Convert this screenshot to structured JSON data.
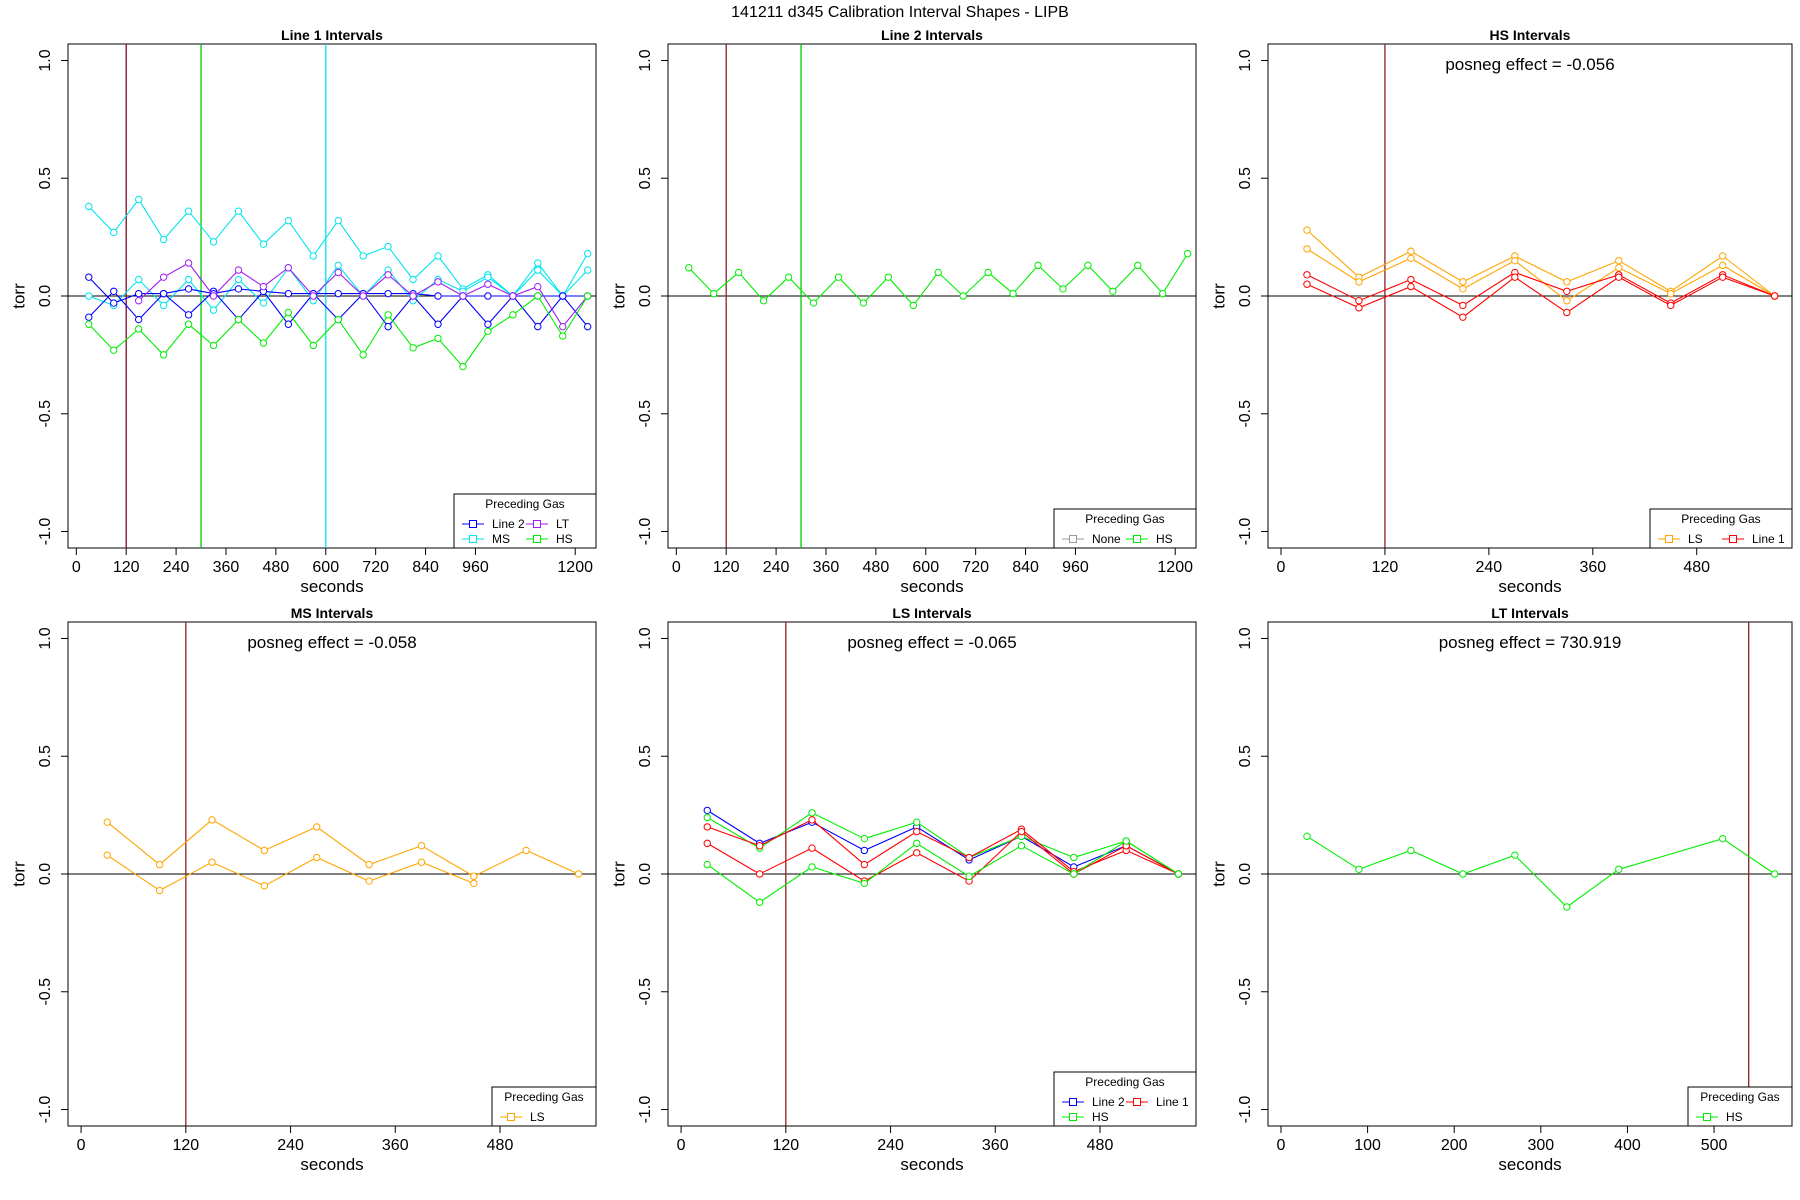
{
  "figure_title": "141211   d345   Calibration Interval Shapes - LIPB",
  "chart_data": [
    {
      "type": "line",
      "title": "Line 1 Intervals",
      "xlabel": "seconds",
      "ylabel": "torr",
      "xlim": [
        -20,
        1250
      ],
      "ylim": [
        -1.07,
        1.07
      ],
      "xticks": [
        0,
        120,
        240,
        360,
        480,
        600,
        720,
        840,
        960,
        1200
      ],
      "yticks": [
        -1.0,
        -0.5,
        0.0,
        0.5,
        1.0
      ],
      "ytick_labels": [
        "-1.0",
        "-0.5",
        "0.0",
        "0.5",
        "1.0"
      ],
      "annotation": "",
      "vlines": [
        {
          "x": 120,
          "color": "#A020F0"
        },
        {
          "x": 120,
          "color": "#8B2323"
        },
        {
          "x": 300,
          "color": "#00CC00"
        },
        {
          "x": 600,
          "color": "#00E5EE"
        }
      ],
      "legend": {
        "title": "Preceding Gas",
        "position": "bottom-right",
        "columns": 2,
        "entries": [
          {
            "label": "Line 2",
            "color": "#0000FF"
          },
          {
            "label": "LT",
            "color": "#A020F0"
          },
          {
            "label": "MS",
            "color": "#00E5EE"
          },
          {
            "label": "HS",
            "color": "#00EE00"
          }
        ]
      },
      "series": [
        {
          "color": "#00E5EE",
          "x": [
            30,
            90,
            150,
            210,
            270,
            330,
            390,
            450,
            510,
            570,
            630,
            690,
            750,
            810,
            870,
            930,
            990,
            1050,
            1110,
            1170,
            1230
          ],
          "y": [
            0.38,
            0.27,
            0.41,
            0.24,
            0.36,
            0.23,
            0.36,
            0.22,
            0.32,
            0.17,
            0.32,
            0.17,
            0.21,
            0.07,
            0.17,
            0.03,
            0.09,
            0.0,
            0.14,
            0.0,
            0.18
          ]
        },
        {
          "color": "#00E5EE",
          "x": [
            30,
            90,
            150,
            210,
            270,
            330,
            390,
            450,
            510,
            570,
            630,
            690,
            750,
            810,
            870,
            930,
            990,
            1050,
            1110,
            1170,
            1230
          ],
          "y": [
            0.0,
            -0.04,
            0.07,
            -0.04,
            0.07,
            -0.06,
            0.07,
            -0.03,
            0.12,
            -0.02,
            0.13,
            0.0,
            0.11,
            -0.02,
            0.07,
            0.02,
            0.08,
            0.0,
            0.11,
            0.0,
            0.11
          ]
        },
        {
          "color": "#0000FF",
          "x": [
            30,
            90,
            150,
            210,
            270,
            330,
            390,
            450,
            510,
            570,
            630,
            690,
            750,
            810,
            870,
            930,
            990,
            1050,
            1110,
            1170,
            1230
          ],
          "y": [
            -0.09,
            0.02,
            -0.1,
            0.01,
            -0.08,
            0.02,
            -0.1,
            0.02,
            -0.12,
            0.01,
            -0.1,
            0.01,
            -0.13,
            0.0,
            -0.12,
            0.0,
            -0.12,
            0.0,
            -0.13,
            0.0,
            -0.13
          ]
        },
        {
          "color": "#0000FF",
          "x": [
            30,
            90,
            150,
            210,
            270,
            330,
            390,
            450,
            510,
            570,
            630,
            690,
            750,
            810,
            870,
            930,
            990,
            1050,
            1110,
            1170,
            1230
          ],
          "y": [
            0.08,
            -0.03,
            0.01,
            0.01,
            0.03,
            0.01,
            0.03,
            0.02,
            0.01,
            0.01,
            0.01,
            0.01,
            0.01,
            0.01,
            0.0,
            0.0,
            0.0,
            0.0,
            0.0,
            0.0,
            0.0
          ]
        },
        {
          "color": "#A020F0",
          "x": [
            150,
            210,
            270,
            330,
            390,
            450,
            510,
            570,
            630,
            690,
            750,
            810,
            870,
            930,
            990,
            1050,
            1110,
            1170,
            1230
          ],
          "y": [
            -0.02,
            0.08,
            0.14,
            0.0,
            0.11,
            0.04,
            0.12,
            0.0,
            0.1,
            0.0,
            0.09,
            0.0,
            0.06,
            0.0,
            0.05,
            0.0,
            0.04,
            -0.13,
            0.0
          ]
        },
        {
          "color": "#00EE00",
          "x": [
            30,
            90,
            150,
            210,
            270,
            330,
            390,
            450,
            510,
            570,
            630,
            690,
            750,
            810,
            870,
            930,
            990,
            1050,
            1110,
            1170,
            1230
          ],
          "y": [
            -0.12,
            -0.23,
            -0.14,
            -0.25,
            -0.12,
            -0.21,
            -0.1,
            -0.2,
            -0.07,
            -0.21,
            -0.1,
            -0.25,
            -0.08,
            -0.22,
            -0.18,
            -0.3,
            -0.15,
            -0.08,
            0.0,
            -0.17,
            0.0
          ]
        }
      ]
    },
    {
      "type": "line",
      "title": "Line 2 Intervals",
      "xlabel": "seconds",
      "ylabel": "torr",
      "xlim": [
        -20,
        1250
      ],
      "ylim": [
        -1.07,
        1.07
      ],
      "xticks": [
        0,
        120,
        240,
        360,
        480,
        600,
        720,
        840,
        960,
        1200
      ],
      "yticks": [
        -1.0,
        -0.5,
        0.0,
        0.5,
        1.0
      ],
      "ytick_labels": [
        "-1.0",
        "-0.5",
        "0.0",
        "0.5",
        "1.0"
      ],
      "annotation": "",
      "vlines": [
        {
          "x": 120,
          "color": "#8B2323"
        },
        {
          "x": 300,
          "color": "#00CC00"
        }
      ],
      "legend": {
        "title": "Preceding Gas",
        "position": "bottom-right",
        "columns": 2,
        "entries": [
          {
            "label": "None",
            "color": "#999999"
          },
          {
            "label": "HS",
            "color": "#00EE00"
          }
        ]
      },
      "series": [
        {
          "color": "#00EE00",
          "x": [
            30,
            90,
            150,
            210,
            270,
            330,
            390,
            450,
            510,
            570,
            630,
            690,
            750,
            810,
            870,
            930,
            990,
            1050,
            1110,
            1170,
            1230
          ],
          "y": [
            0.12,
            0.01,
            0.1,
            -0.02,
            0.08,
            -0.03,
            0.08,
            -0.03,
            0.08,
            -0.04,
            0.1,
            0.0,
            0.1,
            0.01,
            0.13,
            0.03,
            0.13,
            0.02,
            0.13,
            0.01,
            0.18
          ]
        }
      ]
    },
    {
      "type": "line",
      "title": "HS Intervals",
      "xlabel": "seconds",
      "ylabel": "torr",
      "xlim": [
        -15,
        590
      ],
      "ylim": [
        -1.07,
        1.07
      ],
      "xticks": [
        0,
        120,
        240,
        360,
        480
      ],
      "yticks": [
        -1.0,
        -0.5,
        0.0,
        0.5,
        1.0
      ],
      "ytick_labels": [
        "-1.0",
        "-0.5",
        "0.0",
        "0.5",
        "1.0"
      ],
      "annotation": "posneg effect = -0.056",
      "vlines": [
        {
          "x": 120,
          "color": "#8B2323"
        }
      ],
      "legend": {
        "title": "Preceding Gas",
        "position": "bottom-right",
        "columns": 2,
        "entries": [
          {
            "label": "LS",
            "color": "#FFA500"
          },
          {
            "label": "Line 1",
            "color": "#FF0000"
          }
        ]
      },
      "series": [
        {
          "color": "#FFA500",
          "x": [
            30,
            90,
            150,
            210,
            270,
            330,
            390,
            450,
            510,
            570
          ],
          "y": [
            0.28,
            0.08,
            0.19,
            0.06,
            0.17,
            0.06,
            0.15,
            0.02,
            0.17,
            0.0
          ]
        },
        {
          "color": "#FFA500",
          "x": [
            30,
            90,
            150,
            210,
            270,
            330,
            390,
            450,
            510,
            570
          ],
          "y": [
            0.2,
            0.06,
            0.16,
            0.03,
            0.15,
            -0.02,
            0.12,
            0.01,
            0.13,
            0.0
          ]
        },
        {
          "color": "#FF0000",
          "x": [
            30,
            90,
            150,
            210,
            270,
            330,
            390,
            450,
            510,
            570
          ],
          "y": [
            0.09,
            -0.02,
            0.07,
            -0.04,
            0.1,
            0.02,
            0.09,
            -0.03,
            0.09,
            0.0
          ]
        },
        {
          "color": "#FF0000",
          "x": [
            30,
            90,
            150,
            210,
            270,
            330,
            390,
            450,
            510,
            570
          ],
          "y": [
            0.05,
            -0.05,
            0.04,
            -0.09,
            0.08,
            -0.07,
            0.08,
            -0.04,
            0.08,
            0.0
          ]
        }
      ]
    },
    {
      "type": "line",
      "title": "MS Intervals",
      "xlabel": "seconds",
      "ylabel": "torr",
      "xlim": [
        -15,
        590
      ],
      "ylim": [
        -1.07,
        1.07
      ],
      "xticks": [
        0,
        120,
        240,
        360,
        480
      ],
      "yticks": [
        -1.0,
        -0.5,
        0.0,
        0.5,
        1.0
      ],
      "ytick_labels": [
        "-1.0",
        "-0.5",
        "0.0",
        "0.5",
        "1.0"
      ],
      "annotation": "posneg effect = -0.058",
      "vlines": [
        {
          "x": 120,
          "color": "#8B2323"
        }
      ],
      "legend": {
        "title": "Preceding Gas",
        "position": "bottom-right",
        "columns": 1,
        "entries": [
          {
            "label": "LS",
            "color": "#FFA500"
          }
        ]
      },
      "series": [
        {
          "color": "#FFA500",
          "x": [
            30,
            90,
            150,
            210,
            270,
            330,
            390,
            450,
            510,
            570
          ],
          "y": [
            0.22,
            0.04,
            0.23,
            0.1,
            0.2,
            0.04,
            0.12,
            -0.01,
            0.1,
            0.0
          ]
        },
        {
          "color": "#FFA500",
          "x": [
            30,
            90,
            150,
            210,
            270,
            330,
            390,
            450
          ],
          "y": [
            0.08,
            -0.07,
            0.05,
            -0.05,
            0.07,
            -0.03,
            0.05,
            -0.04
          ]
        }
      ]
    },
    {
      "type": "line",
      "title": "LS Intervals",
      "xlabel": "seconds",
      "ylabel": "torr",
      "xlim": [
        -15,
        590
      ],
      "ylim": [
        -1.07,
        1.07
      ],
      "xticks": [
        0,
        120,
        240,
        360,
        480
      ],
      "yticks": [
        -1.0,
        -0.5,
        0.0,
        0.5,
        1.0
      ],
      "ytick_labels": [
        "-1.0",
        "-0.5",
        "0.0",
        "0.5",
        "1.0"
      ],
      "annotation": "posneg effect = -0.065",
      "vlines": [
        {
          "x": 120,
          "color": "#8B2323"
        }
      ],
      "legend": {
        "title": "Preceding Gas",
        "position": "bottom-right",
        "columns": 2,
        "entries": [
          {
            "label": "Line 2",
            "color": "#0000FF"
          },
          {
            "label": "Line 1",
            "color": "#FF0000"
          },
          {
            "label": "HS",
            "color": "#00EE00"
          }
        ]
      },
      "series": [
        {
          "color": "#0000FF",
          "x": [
            30,
            90,
            150,
            210,
            270,
            330,
            390,
            450,
            510,
            570
          ],
          "y": [
            0.27,
            0.13,
            0.22,
            0.1,
            0.2,
            0.06,
            0.16,
            0.03,
            0.12,
            0.0
          ]
        },
        {
          "color": "#00EE00",
          "x": [
            30,
            90,
            150,
            210,
            270,
            330,
            390,
            450,
            510,
            570
          ],
          "y": [
            0.24,
            0.11,
            0.26,
            0.15,
            0.22,
            0.07,
            0.16,
            0.07,
            0.14,
            0.0
          ]
        },
        {
          "color": "#FF0000",
          "x": [
            30,
            90,
            150,
            210,
            270,
            330,
            390,
            450,
            510,
            570
          ],
          "y": [
            0.2,
            0.12,
            0.23,
            0.04,
            0.18,
            0.07,
            0.19,
            0.01,
            0.1,
            0.0
          ]
        },
        {
          "color": "#FF0000",
          "x": [
            30,
            90,
            150,
            210,
            270,
            330,
            390,
            450,
            510,
            570
          ],
          "y": [
            0.13,
            0.0,
            0.11,
            -0.03,
            0.09,
            -0.03,
            0.18,
            0.0,
            0.12,
            0.0
          ]
        },
        {
          "color": "#00EE00",
          "x": [
            30,
            90,
            150,
            210,
            270,
            330,
            390,
            450,
            510,
            570
          ],
          "y": [
            0.04,
            -0.12,
            0.03,
            -0.04,
            0.13,
            -0.01,
            0.12,
            0.0,
            0.14,
            0.0
          ]
        }
      ]
    },
    {
      "type": "line",
      "title": "LT Intervals",
      "xlabel": "seconds",
      "ylabel": "torr",
      "xlim": [
        -15,
        590
      ],
      "ylim": [
        -1.07,
        1.07
      ],
      "xticks": [
        0,
        100,
        200,
        300,
        400,
        500
      ],
      "yticks": [
        -1.0,
        -0.5,
        0.0,
        0.5,
        1.0
      ],
      "ytick_labels": [
        "-1.0",
        "-0.5",
        "0.0",
        "0.5",
        "1.0"
      ],
      "annotation": "posneg effect = 730.919",
      "vlines": [
        {
          "x": 540,
          "color": "#8B2323"
        }
      ],
      "legend": {
        "title": "Preceding Gas",
        "position": "bottom-right",
        "columns": 1,
        "entries": [
          {
            "label": "HS",
            "color": "#00EE00"
          }
        ]
      },
      "series": [
        {
          "color": "#00EE00",
          "x": [
            30,
            90,
            150,
            210,
            270,
            330,
            390,
            510,
            570
          ],
          "y": [
            0.16,
            0.02,
            0.1,
            0.0,
            0.08,
            -0.14,
            0.02,
            0.15,
            0.0
          ]
        }
      ]
    }
  ]
}
